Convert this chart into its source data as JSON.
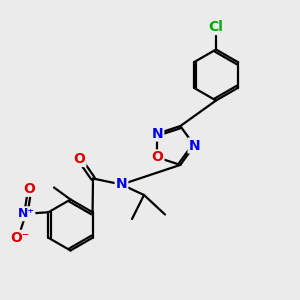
{
  "background_color": "#ebebeb",
  "bond_color": "#000000",
  "bond_width": 1.6,
  "atom_colors": {
    "N": "#0000ee",
    "O": "#dd0000",
    "Cl": "#00aa00",
    "C": "#000000"
  },
  "font_size_atoms": 10,
  "figsize": [
    3.0,
    3.0
  ],
  "dpi": 100
}
